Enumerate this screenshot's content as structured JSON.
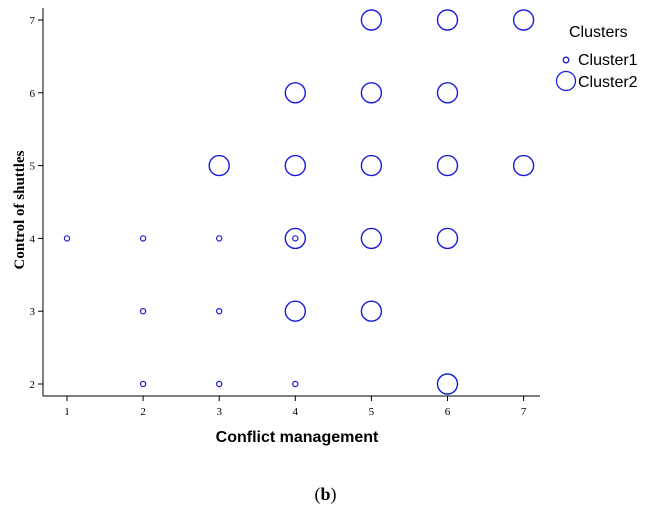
{
  "chart_data": {
    "type": "scatter",
    "xlabel": "Conflict management",
    "ylabel": "Control of shuttles",
    "xlim": [
      0.7,
      7.2
    ],
    "ylim": [
      1.85,
      7.2
    ],
    "xticks": [
      1,
      2,
      3,
      4,
      5,
      6,
      7
    ],
    "yticks": [
      2,
      3,
      4,
      5,
      6,
      7
    ],
    "grid": false,
    "legend": {
      "title": "Clusters",
      "position": "top-right"
    },
    "marker_color": "#1a1adb",
    "series": [
      {
        "name": "Cluster1",
        "marker": "small-circle",
        "points": [
          [
            1,
            4
          ],
          [
            2,
            4
          ],
          [
            3,
            4
          ],
          [
            4,
            4
          ],
          [
            2,
            3
          ],
          [
            3,
            3
          ],
          [
            2,
            2
          ],
          [
            3,
            2
          ],
          [
            4,
            2
          ]
        ]
      },
      {
        "name": "Cluster2",
        "marker": "large-circle",
        "points": [
          [
            5,
            7
          ],
          [
            6,
            7
          ],
          [
            7,
            7
          ],
          [
            4,
            6
          ],
          [
            5,
            6
          ],
          [
            6,
            6
          ],
          [
            3,
            5
          ],
          [
            4,
            5
          ],
          [
            5,
            5
          ],
          [
            6,
            5
          ],
          [
            7,
            5
          ],
          [
            4,
            4
          ],
          [
            5,
            4
          ],
          [
            6,
            4
          ],
          [
            4,
            3
          ],
          [
            5,
            3
          ],
          [
            6,
            2
          ]
        ]
      }
    ]
  },
  "caption": {
    "prefix": "(",
    "letter": "b",
    "suffix": ")"
  }
}
